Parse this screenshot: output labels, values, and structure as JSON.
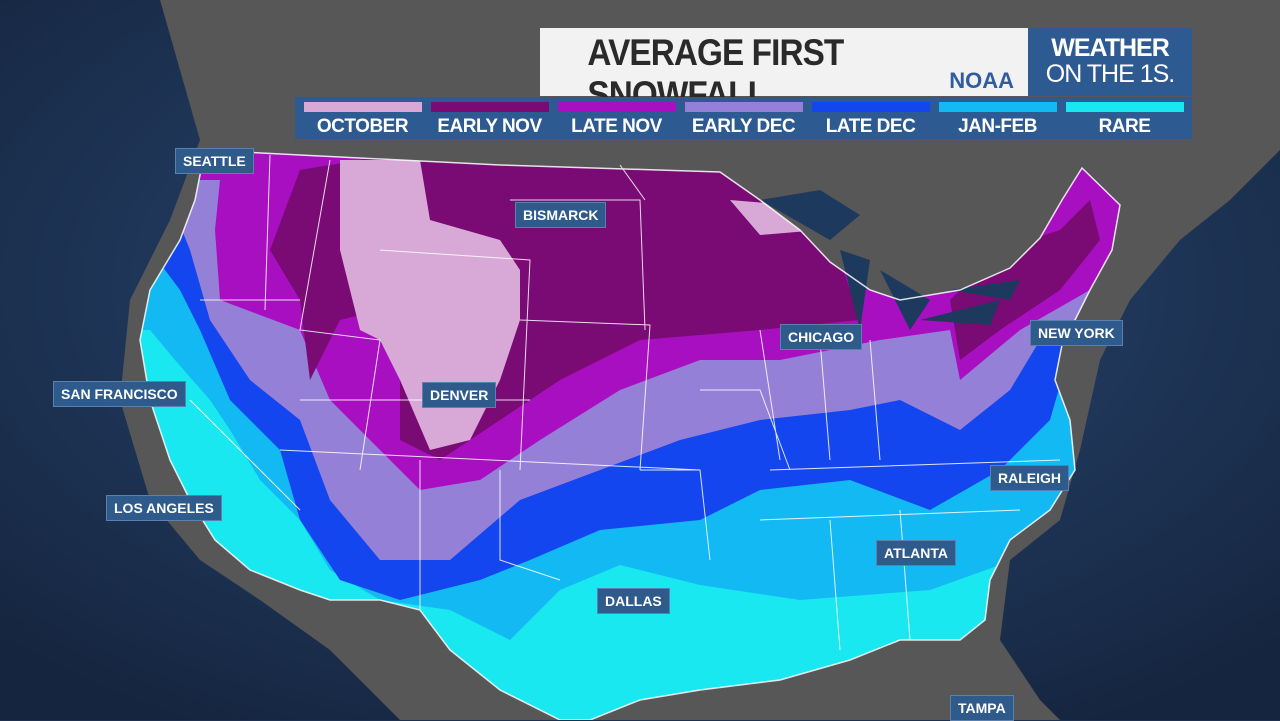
{
  "header": {
    "title": "AVERAGE FIRST SNOWFALL",
    "source": "NOAA",
    "brand_line1": "WEATHER",
    "brand_line2": "ON THE 1S."
  },
  "legend": [
    {
      "label": "OCTOBER",
      "color": "#d8a9d7"
    },
    {
      "label": "EARLY NOV",
      "color": "#7a0a74"
    },
    {
      "label": "LATE NOV",
      "color": "#a80fc0"
    },
    {
      "label": "EARLY DEC",
      "color": "#9580d8"
    },
    {
      "label": "LATE DEC",
      "color": "#1446f0"
    },
    {
      "label": "JAN-FEB",
      "color": "#12b9f2"
    },
    {
      "label": "RARE",
      "color": "#1ae8f0"
    }
  ],
  "cities": [
    {
      "name": "SEATTLE"
    },
    {
      "name": "BISMARCK"
    },
    {
      "name": "SAN FRANCISCO"
    },
    {
      "name": "DENVER"
    },
    {
      "name": "CHICAGO"
    },
    {
      "name": "NEW YORK"
    },
    {
      "name": "LOS ANGELES"
    },
    {
      "name": "RALEIGH"
    },
    {
      "name": "ATLANTA"
    },
    {
      "name": "DALLAS"
    },
    {
      "name": "TAMPA"
    }
  ],
  "colors": {
    "ocean": "#1d3050",
    "land": "#575757",
    "border": "#ffffff"
  }
}
